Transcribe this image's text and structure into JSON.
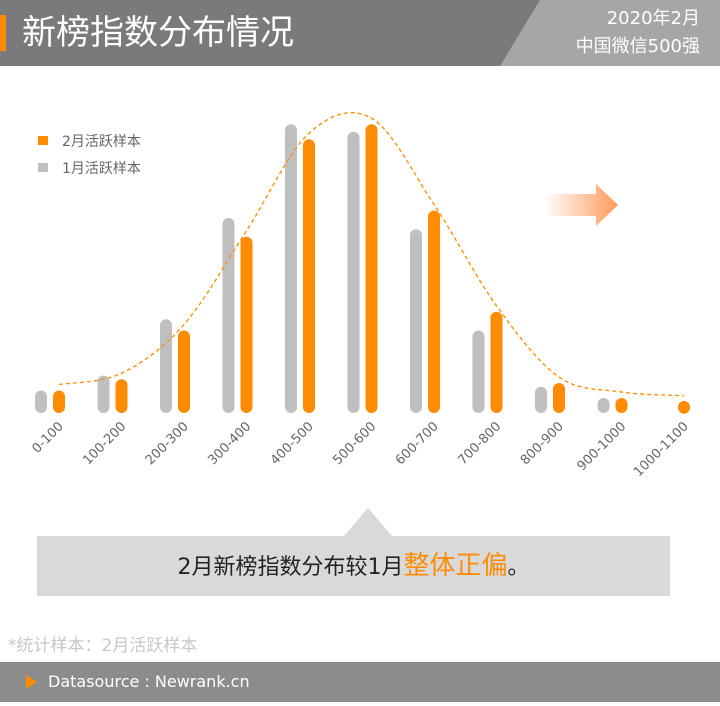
{
  "header": {
    "title": "新榜指数分布情况",
    "badge_line1": "2020年2月",
    "badge_line2": "中国微信500强"
  },
  "chart_data": {
    "type": "bar",
    "categories": [
      "0-100",
      "100-200",
      "200-300",
      "300-400",
      "400-500",
      "500-600",
      "600-700",
      "700-800",
      "800-900",
      "900-1000",
      "1000-1100"
    ],
    "series": [
      {
        "name": "1月活跃样本",
        "color": "#bfbfbf",
        "values": [
          6,
          10,
          25,
          52,
          77,
          75,
          49,
          22,
          7,
          4,
          0
        ]
      },
      {
        "name": "2月活跃样本",
        "color": "#ff8c00",
        "values": [
          6,
          9,
          22,
          47,
          73,
          77,
          54,
          27,
          8,
          4,
          3
        ]
      }
    ],
    "trend_line": "dashed orange curve over the 2月 series",
    "legend_position": "top-left",
    "grid": false
  },
  "callout": {
    "text_before": "2月新榜指数分布较1月",
    "highlight": "整体正偏",
    "text_after": "。"
  },
  "footnote": "*统计样本：2月活跃样本",
  "footer": {
    "source": "Datasource : Newrank.cn"
  },
  "colors": {
    "accent": "#ff8c00",
    "header_bg": "#7a7a7a",
    "badge_bg": "#a6a6a6",
    "callout_bg": "#d9d9d9",
    "footer_bg": "#8c8c8c"
  }
}
